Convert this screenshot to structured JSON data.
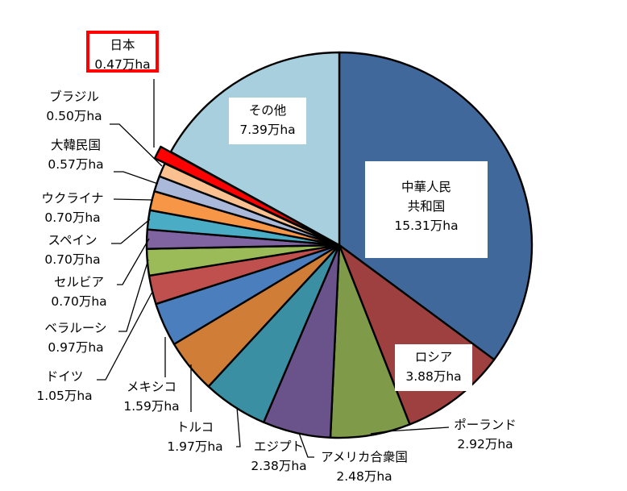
{
  "chart_data": {
    "type": "pie",
    "title": "",
    "unit": "万ha",
    "start_angle_deg": 0,
    "direction": "clockwise",
    "center": [
      421,
      304
    ],
    "radius": 239,
    "highlight": {
      "name": "日本",
      "exploded": true,
      "label_border_color": "#ff0000"
    },
    "slices": [
      {
        "name": "中華人民共和国",
        "name_lines": [
          "中華人民",
          "共和国"
        ],
        "value": 15.31,
        "label": "15.31万ha",
        "color": "#41689a"
      },
      {
        "name": "ロシア",
        "name_lines": [
          "ロシア"
        ],
        "value": 3.88,
        "label": "3.88万ha",
        "color": "#9e403f"
      },
      {
        "name": "ポーランド",
        "name_lines": [
          "ポーランド"
        ],
        "value": 2.92,
        "label": "2.92万ha",
        "color": "#7f9a48"
      },
      {
        "name": "アメリカ合衆国",
        "name_lines": [
          "アメリカ合衆国"
        ],
        "value": 2.48,
        "label": "2.48万ha",
        "color": "#6a528a"
      },
      {
        "name": "エジプト",
        "name_lines": [
          "エジプト"
        ],
        "value": 2.38,
        "label": "2.38万ha",
        "color": "#3a8fa2"
      },
      {
        "name": "トルコ",
        "name_lines": [
          "トルコ"
        ],
        "value": 1.97,
        "label": "1.97万ha",
        "color": "#d07d38"
      },
      {
        "name": "メキシコ",
        "name_lines": [
          "メキシコ"
        ],
        "value": 1.59,
        "label": "1.59万ha",
        "color": "#4a7ebd"
      },
      {
        "name": "ドイツ",
        "name_lines": [
          "ドイツ"
        ],
        "value": 1.05,
        "label": "1.05万ha",
        "color": "#c0504d"
      },
      {
        "name": "ベラルーシ",
        "name_lines": [
          "ベラルーシ"
        ],
        "value": 0.97,
        "label": "0.97万ha",
        "color": "#9bbb59"
      },
      {
        "name": "セルビア",
        "name_lines": [
          "セルビア"
        ],
        "value": 0.7,
        "label": "0.70万ha",
        "color": "#8064a2"
      },
      {
        "name": "スペイン",
        "name_lines": [
          "スペイン"
        ],
        "value": 0.7,
        "label": "0.70万ha",
        "color": "#4bacc6"
      },
      {
        "name": "ウクライナ",
        "name_lines": [
          "ウクライナ"
        ],
        "value": 0.7,
        "label": "0.70万ha",
        "color": "#f79646"
      },
      {
        "name": "大韓民国",
        "name_lines": [
          "大韓民国"
        ],
        "value": 0.57,
        "label": "0.57万ha",
        "color": "#aab9d9"
      },
      {
        "name": "ブラジル",
        "name_lines": [
          "ブラジル"
        ],
        "value": 0.5,
        "label": "0.50万ha",
        "color": "#fac090"
      },
      {
        "name": "日本",
        "name_lines": [
          "日本"
        ],
        "value": 0.47,
        "label": "0.47万ha",
        "color": "#ff0000"
      },
      {
        "name": "その他",
        "name_lines": [
          "その他"
        ],
        "value": 7.39,
        "label": "7.39万ha",
        "color": "#a8cfdd"
      }
    ]
  },
  "labels": {
    "china": {
      "l1": "中華人民",
      "l2": "共和国",
      "v": "15.31万ha"
    },
    "russia": {
      "l1": "ロシア",
      "v": "3.88万ha"
    },
    "poland": {
      "l1": "ポーランド",
      "v": "2.92万ha"
    },
    "usa": {
      "l1": "アメリカ合衆国",
      "v": "2.48万ha"
    },
    "egypt": {
      "l1": "エジプト",
      "v": "2.38万ha"
    },
    "turkey": {
      "l1": "トルコ",
      "v": "1.97万ha"
    },
    "mexico": {
      "l1": "メキシコ",
      "v": "1.59万ha"
    },
    "germany": {
      "l1": "ドイツ",
      "v": "1.05万ha"
    },
    "belarus": {
      "l1": "ベラルーシ",
      "v": "0.97万ha"
    },
    "serbia": {
      "l1": "セルビア",
      "v": "0.70万ha"
    },
    "spain": {
      "l1": "スペイン",
      "v": "0.70万ha"
    },
    "ukraine": {
      "l1": "ウクライナ",
      "v": "0.70万ha"
    },
    "korea": {
      "l1": "大韓民国",
      "v": "0.57万ha"
    },
    "brazil": {
      "l1": "ブラジル",
      "v": "0.50万ha"
    },
    "japan": {
      "l1": "日本",
      "v": "0.47万ha"
    },
    "other": {
      "l1": "その他",
      "v": "7.39万ha"
    }
  }
}
